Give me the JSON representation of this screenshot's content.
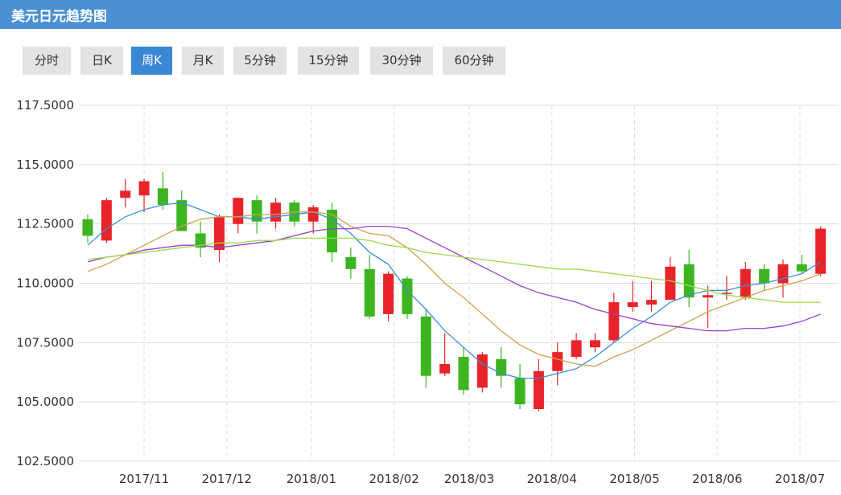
{
  "title": "美元日元趋势图",
  "tabs": [
    {
      "label": "分时",
      "active": false
    },
    {
      "label": "日K",
      "active": false
    },
    {
      "label": "周K",
      "active": true
    },
    {
      "label": "月K",
      "active": false
    },
    {
      "label": "5分钟",
      "active": false
    },
    {
      "label": "15分钟",
      "active": false
    },
    {
      "label": "30分钟",
      "active": false
    },
    {
      "label": "60分钟",
      "active": false
    }
  ],
  "colors": {
    "header": "#4a90d2",
    "active_tab": "#3a87d6",
    "up_candle": "#e8232a",
    "down_candle": "#3cb521",
    "ma_blue": "#3a8fd6",
    "ma_orange": "#d4a04a",
    "ma_purple": "#9a3fcf",
    "ma_green": "#9cd94a"
  },
  "chart_data": {
    "type": "candlestick",
    "ylim": [
      102.5,
      117.5
    ],
    "y_ticks": [
      "117.5000",
      "115.0000",
      "112.5000",
      "110.0000",
      "107.5000",
      "105.0000",
      "102.5000"
    ],
    "x_labels": [
      {
        "label": "2017/11",
        "index": 3
      },
      {
        "label": "2017/12",
        "index": 7.4
      },
      {
        "label": "2018/01",
        "index": 11.9
      },
      {
        "label": "2018/02",
        "index": 16.3
      },
      {
        "label": "2018/03",
        "index": 20.3
      },
      {
        "label": "2018/04",
        "index": 24.7
      },
      {
        "label": "2018/05",
        "index": 29.1
      },
      {
        "label": "2018/06",
        "index": 33.5
      },
      {
        "label": "2018/07",
        "index": 37.9
      }
    ],
    "candles": [
      {
        "open": 112.7,
        "high": 112.9,
        "low": 111.7,
        "close": 112.0
      },
      {
        "open": 111.8,
        "high": 113.6,
        "low": 111.7,
        "close": 113.5
      },
      {
        "open": 113.6,
        "high": 114.4,
        "low": 113.2,
        "close": 113.9
      },
      {
        "open": 113.7,
        "high": 114.4,
        "low": 113.0,
        "close": 114.3
      },
      {
        "open": 114.0,
        "high": 114.7,
        "low": 113.1,
        "close": 113.3
      },
      {
        "open": 113.5,
        "high": 113.9,
        "low": 112.2,
        "close": 112.2
      },
      {
        "open": 112.1,
        "high": 112.6,
        "low": 111.1,
        "close": 111.5
      },
      {
        "open": 111.4,
        "high": 112.9,
        "low": 110.9,
        "close": 112.8
      },
      {
        "open": 112.5,
        "high": 113.6,
        "low": 112.1,
        "close": 113.6
      },
      {
        "open": 113.5,
        "high": 113.7,
        "low": 112.1,
        "close": 112.6
      },
      {
        "open": 112.6,
        "high": 113.6,
        "low": 112.3,
        "close": 113.4
      },
      {
        "open": 113.4,
        "high": 113.5,
        "low": 112.4,
        "close": 112.6
      },
      {
        "open": 112.6,
        "high": 113.3,
        "low": 112.1,
        "close": 113.2
      },
      {
        "open": 113.1,
        "high": 113.4,
        "low": 110.9,
        "close": 111.3
      },
      {
        "open": 111.1,
        "high": 111.5,
        "low": 110.2,
        "close": 110.6
      },
      {
        "open": 110.6,
        "high": 111.2,
        "low": 108.5,
        "close": 108.6
      },
      {
        "open": 108.7,
        "high": 110.5,
        "low": 108.4,
        "close": 110.4
      },
      {
        "open": 110.2,
        "high": 110.3,
        "low": 108.5,
        "close": 108.7
      },
      {
        "open": 108.6,
        "high": 108.9,
        "low": 105.6,
        "close": 106.1
      },
      {
        "open": 106.2,
        "high": 107.9,
        "low": 106.1,
        "close": 106.6
      },
      {
        "open": 106.9,
        "high": 107.3,
        "low": 105.3,
        "close": 105.5
      },
      {
        "open": 105.6,
        "high": 107.1,
        "low": 105.4,
        "close": 107.0
      },
      {
        "open": 106.8,
        "high": 107.3,
        "low": 105.6,
        "close": 106.1
      },
      {
        "open": 106.0,
        "high": 106.6,
        "low": 104.7,
        "close": 104.9
      },
      {
        "open": 104.7,
        "high": 106.8,
        "low": 104.6,
        "close": 106.3
      },
      {
        "open": 106.3,
        "high": 107.5,
        "low": 105.7,
        "close": 107.1
      },
      {
        "open": 106.9,
        "high": 107.9,
        "low": 106.8,
        "close": 107.6
      },
      {
        "open": 107.3,
        "high": 107.9,
        "low": 107.1,
        "close": 107.6
      },
      {
        "open": 107.6,
        "high": 109.6,
        "low": 107.5,
        "close": 109.2
      },
      {
        "open": 109.0,
        "high": 110.1,
        "low": 108.8,
        "close": 109.2
      },
      {
        "open": 109.1,
        "high": 110.1,
        "low": 108.8,
        "close": 109.3
      },
      {
        "open": 109.3,
        "high": 111.1,
        "low": 109.3,
        "close": 110.7
      },
      {
        "open": 110.8,
        "high": 111.4,
        "low": 109.0,
        "close": 109.4
      },
      {
        "open": 109.4,
        "high": 109.9,
        "low": 108.1,
        "close": 109.5
      },
      {
        "open": 109.6,
        "high": 110.3,
        "low": 109.3,
        "close": 109.6
      },
      {
        "open": 109.4,
        "high": 110.9,
        "low": 109.3,
        "close": 110.6
      },
      {
        "open": 110.6,
        "high": 110.8,
        "low": 109.7,
        "close": 110.0
      },
      {
        "open": 110.0,
        "high": 111.0,
        "low": 109.4,
        "close": 110.8
      },
      {
        "open": 110.8,
        "high": 111.2,
        "low": 110.4,
        "close": 110.5
      },
      {
        "open": 110.4,
        "high": 112.4,
        "low": 110.3,
        "close": 112.3
      }
    ],
    "moving_averages": [
      {
        "color": "#3a8fd6",
        "values": [
          111.6,
          112.3,
          112.8,
          113.1,
          113.3,
          113.4,
          113.1,
          112.8,
          112.8,
          112.7,
          112.8,
          112.9,
          113.0,
          112.7,
          112.1,
          111.3,
          110.8,
          109.7,
          108.9,
          108.0,
          107.3,
          106.6,
          106.2,
          106.0,
          106.0,
          106.2,
          106.4,
          106.9,
          107.5,
          108.1,
          108.6,
          109.2,
          109.5,
          109.7,
          109.7,
          109.9,
          110.0,
          110.2,
          110.4,
          110.9
        ]
      },
      {
        "color": "#d4a04a",
        "values": [
          110.5,
          110.8,
          111.2,
          111.6,
          112.0,
          112.4,
          112.7,
          112.8,
          112.8,
          112.9,
          112.9,
          113.0,
          113.0,
          112.9,
          112.4,
          112.1,
          112.0,
          111.5,
          110.8,
          110.0,
          109.4,
          108.7,
          108.0,
          107.4,
          107.0,
          106.8,
          106.6,
          106.5,
          106.9,
          107.2,
          107.6,
          108.0,
          108.4,
          108.8,
          109.1,
          109.4,
          109.7,
          109.9,
          110.1,
          110.4
        ]
      },
      {
        "color": "#9a3fcf",
        "values": [
          110.9,
          111.1,
          111.2,
          111.4,
          111.5,
          111.6,
          111.6,
          111.5,
          111.6,
          111.7,
          111.8,
          112.0,
          112.2,
          112.3,
          112.3,
          112.4,
          112.4,
          112.3,
          111.9,
          111.5,
          111.1,
          110.7,
          110.3,
          109.9,
          109.6,
          109.4,
          109.2,
          108.9,
          108.7,
          108.5,
          108.3,
          108.2,
          108.1,
          108.0,
          108.0,
          108.1,
          108.1,
          108.2,
          108.4,
          108.7
        ]
      },
      {
        "color": "#9cd94a",
        "values": [
          111.0,
          111.1,
          111.2,
          111.3,
          111.4,
          111.5,
          111.6,
          111.7,
          111.7,
          111.8,
          111.8,
          111.9,
          111.9,
          111.9,
          111.9,
          111.8,
          111.6,
          111.5,
          111.3,
          111.2,
          111.1,
          111.0,
          110.9,
          110.8,
          110.7,
          110.6,
          110.6,
          110.5,
          110.4,
          110.3,
          110.2,
          110.1,
          109.9,
          109.7,
          109.5,
          109.4,
          109.3,
          109.2,
          109.2,
          109.2
        ]
      }
    ]
  }
}
